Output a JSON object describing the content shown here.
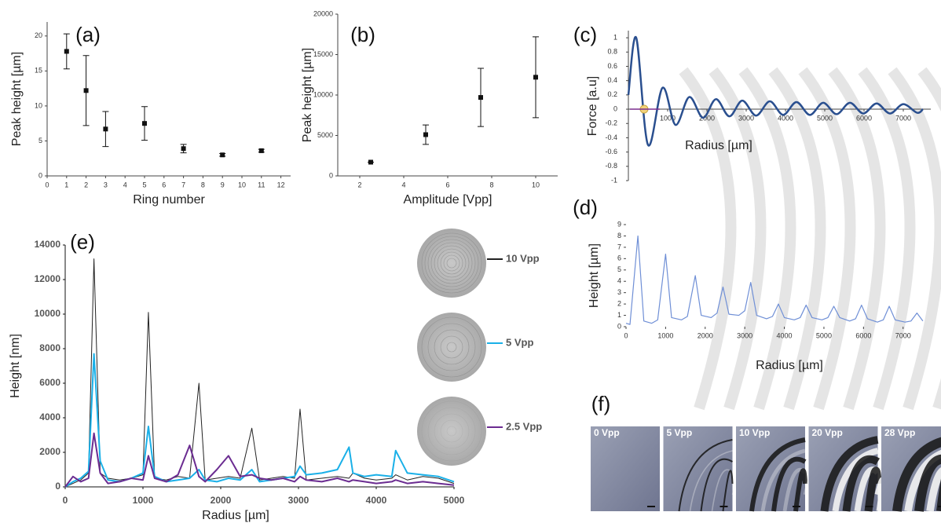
{
  "chart_data": [
    {
      "type": "scatter",
      "title": "(a)",
      "x_label": "Ring number",
      "y_label": "Peak height [µm]",
      "x": [
        1,
        2,
        3,
        5,
        7,
        9,
        11
      ],
      "values": [
        17.8,
        12.2,
        6.7,
        7.5,
        3.9,
        3.0,
        3.6
      ],
      "errors": [
        2.5,
        5.0,
        2.5,
        2.4,
        0.6,
        0.2,
        0.2
      ],
      "color": "#111111",
      "xlim": [
        0,
        12.5
      ],
      "ylim": [
        0,
        22
      ],
      "xticks": [
        0,
        1,
        2,
        3,
        4,
        5,
        6,
        7,
        8,
        9,
        10,
        11,
        12
      ],
      "yticks": [
        0,
        5,
        10,
        15,
        20
      ]
    },
    {
      "type": "scatter",
      "title": "(b)",
      "x_label": "Amplitude [Vpp]",
      "y_label": "Peak height [µm]",
      "x": [
        2.5,
        5,
        7.5,
        10
      ],
      "values": [
        1700,
        5100,
        9700,
        12200
      ],
      "errors": [
        0,
        1200,
        3600,
        5000
      ],
      "color": "#111111",
      "xlim": [
        1,
        11
      ],
      "ylim": [
        0,
        20000
      ],
      "xticks": [
        2,
        4,
        6,
        8,
        10
      ],
      "yticks": [
        0,
        5000,
        10000,
        15000,
        20000
      ]
    },
    {
      "type": "line",
      "title": "(c)",
      "x_label": "Radius [µm]",
      "y_label": "Force [a.u]",
      "smooth": true,
      "x": [
        0,
        200,
        500,
        870,
        1200,
        1550,
        1900,
        2230,
        2570,
        2900,
        3250,
        3600,
        3940,
        4280,
        4620,
        4960,
        5300,
        5640,
        5980,
        6320,
        6660,
        7000,
        7350,
        7500
      ],
      "values": [
        0.2,
        1,
        -0.5,
        0.3,
        -0.22,
        0.17,
        -0.12,
        0.14,
        -0.1,
        0.12,
        -0.09,
        0.11,
        -0.08,
        0.1,
        -0.08,
        0.09,
        -0.07,
        0.09,
        -0.06,
        0.08,
        -0.06,
        0.07,
        -0.05,
        0
      ],
      "color": "#2a4f8f",
      "xlim": [
        0,
        7700
      ],
      "ylim": [
        -1,
        1.1
      ],
      "xticks": [
        1000,
        2000,
        3000,
        4000,
        5000,
        6000,
        7000
      ],
      "yticks": [
        -1,
        -0.8,
        -0.6,
        -0.4,
        -0.2,
        0,
        0.2,
        0.4,
        0.6,
        0.8,
        1
      ]
    },
    {
      "type": "line",
      "title": "(d)",
      "x_label": "Radius [µm]",
      "y_label": "Height [µm]",
      "x": [
        0,
        100,
        300,
        450,
        650,
        800,
        1000,
        1150,
        1400,
        1550,
        1750,
        1900,
        2150,
        2300,
        2450,
        2600,
        2850,
        3000,
        3150,
        3300,
        3550,
        3700,
        3850,
        4000,
        4250,
        4400,
        4550,
        4700,
        4950,
        5100,
        5250,
        5400,
        5650,
        5800,
        5950,
        6100,
        6350,
        6500,
        6650,
        6800,
        7050,
        7200,
        7350,
        7500
      ],
      "values": [
        0.3,
        0.2,
        8,
        0.5,
        0.3,
        0.6,
        6.4,
        0.8,
        0.6,
        0.9,
        4.5,
        1.0,
        0.8,
        1.2,
        3.5,
        1.1,
        1.0,
        1.4,
        3.9,
        1.0,
        0.7,
        0.9,
        2.0,
        0.8,
        0.6,
        0.8,
        1.9,
        0.8,
        0.6,
        0.8,
        1.8,
        0.8,
        0.5,
        0.7,
        1.9,
        0.7,
        0.4,
        0.6,
        1.8,
        0.6,
        0.4,
        0.5,
        1.2,
        0.5
      ],
      "color": "#6f8fd6",
      "xlim": [
        0,
        7700
      ],
      "ylim": [
        0,
        9
      ],
      "xticks": [
        0,
        1000,
        2000,
        3000,
        4000,
        5000,
        6000,
        7000
      ],
      "yticks": [
        0,
        1,
        2,
        3,
        4,
        5,
        6,
        7,
        8,
        9
      ]
    },
    {
      "type": "line",
      "title": "(e)",
      "x_label": "Radius [µm]",
      "y_label": "Height [nm]",
      "x": [
        0,
        100,
        200,
        300,
        370,
        450,
        550,
        700,
        850,
        1000,
        1070,
        1150,
        1300,
        1450,
        1600,
        1720,
        1800,
        1950,
        2100,
        2250,
        2400,
        2500,
        2650,
        2800,
        2950,
        3020,
        3100,
        3300,
        3500,
        3650,
        3700,
        3850,
        4000,
        4200,
        4250,
        4400,
        4600,
        4800,
        5000
      ],
      "series": [
        {
          "name": "10 Vpp",
          "color": "#222222",
          "values": [
            0,
            200,
            400,
            800,
            13200,
            800,
            500,
            400,
            500,
            700,
            10100,
            500,
            400,
            600,
            500,
            6000,
            400,
            500,
            600,
            500,
            3400,
            400,
            500,
            600,
            500,
            4500,
            400,
            500,
            600,
            500,
            800,
            500,
            400,
            500,
            700,
            400,
            600,
            500,
            200
          ]
        },
        {
          "name": "5 Vpp",
          "color": "#1ab0e8",
          "values": [
            0,
            300,
            500,
            900,
            7700,
            1500,
            400,
            300,
            500,
            800,
            3500,
            600,
            300,
            400,
            500,
            1000,
            400,
            300,
            500,
            400,
            1000,
            300,
            400,
            500,
            600,
            1200,
            700,
            800,
            1000,
            2300,
            800,
            600,
            700,
            600,
            2100,
            800,
            700,
            600,
            300
          ]
        },
        {
          "name": "2.5 Vpp",
          "color": "#6b2c91",
          "values": [
            0,
            600,
            300,
            500,
            3100,
            800,
            200,
            300,
            500,
            400,
            1800,
            500,
            300,
            700,
            2400,
            600,
            300,
            1000,
            1800,
            600,
            700,
            500,
            400,
            500,
            300,
            600,
            400,
            300,
            500,
            300,
            400,
            300,
            200,
            300,
            400,
            200,
            300,
            200,
            100
          ]
        }
      ],
      "xlim": [
        0,
        5000
      ],
      "ylim": [
        0,
        14000
      ],
      "xticks": [
        0,
        1000,
        2000,
        3000,
        4000,
        5000
      ],
      "yticks": [
        0,
        2000,
        4000,
        6000,
        8000,
        10000,
        12000,
        14000
      ]
    }
  ],
  "figure_f": {
    "label": "(f)",
    "captions": [
      "0 Vpp",
      "5 Vpp",
      "10 Vpp",
      "20 Vpp",
      "28 Vpp"
    ]
  }
}
